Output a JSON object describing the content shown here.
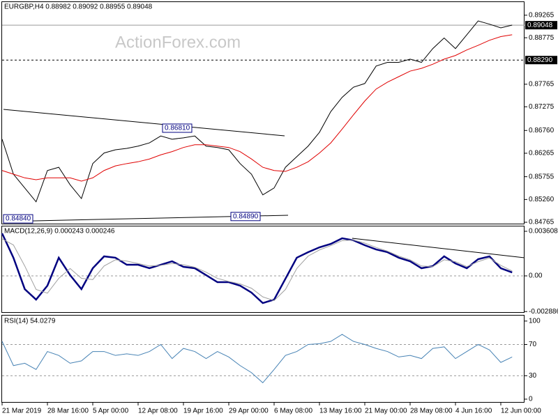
{
  "chart_data": [
    {
      "type": "line",
      "title": "EURGBP,H4  0.88982 0.89092 0.88955 0.89048",
      "watermark": "ActionForex.com",
      "ylim": [
        0.8472,
        0.8955
      ],
      "yticks": [
        0.89265,
        0.88775,
        0.87765,
        0.87275,
        {
          "value": 0.8676,
          "label": "0.86760"
        },
        0.86265,
        0.85755,
        {
          "value": 0.8526,
          "label": "0.85260"
        },
        0.84765
      ],
      "series": [
        {
          "color": "#000000",
          "values": [
            0.8657,
            0.8581,
            0.8551,
            0.8521,
            0.8589,
            0.8596,
            0.8558,
            0.8528,
            0.8604,
            0.8627,
            0.8634,
            0.8637,
            0.8642,
            0.8649,
            0.8664,
            0.8657,
            0.866,
            0.8664,
            0.8642,
            0.8639,
            0.8634,
            0.8604,
            0.8581,
            0.8536,
            0.8551,
            0.8596,
            0.8619,
            0.8642,
            0.8672,
            0.8717,
            0.8748,
            0.877,
            0.8778,
            0.8816,
            0.8824,
            0.8824,
            0.8831,
            0.8824,
            0.8854,
            0.8877,
            0.8854,
            0.8884,
            0.8914,
            0.8907,
            0.8899,
            0.8905
          ]
        },
        {
          "color": "#e00000",
          "values": [
            0.8589,
            0.8581,
            0.8573,
            0.8569,
            0.8573,
            0.8573,
            0.8573,
            0.8566,
            0.8573,
            0.8589,
            0.8599,
            0.8604,
            0.8608,
            0.8614,
            0.8623,
            0.863,
            0.8639,
            0.8645,
            0.8645,
            0.8642,
            0.8639,
            0.863,
            0.8614,
            0.8596,
            0.8589,
            0.8587,
            0.8596,
            0.8608,
            0.8627,
            0.8649,
            0.8679,
            0.871,
            0.874,
            0.8766,
            0.8781,
            0.8793,
            0.8805,
            0.8811,
            0.882,
            0.8831,
            0.8839,
            0.8851,
            0.8861,
            0.8872,
            0.888,
            0.8884
          ]
        }
      ],
      "price_lines": [
        {
          "value": 0.89048,
          "dashed": false
        },
        {
          "value": 0.8829,
          "label": "0.88290",
          "dashed": true
        }
      ],
      "annotations": [
        {
          "value": 0.8681,
          "label": "0.86810"
        },
        {
          "value": 0.8484,
          "label": "0.84840"
        },
        {
          "value": 0.8489,
          "label": "0.84890"
        }
      ]
    },
    {
      "type": "line",
      "title": "MACD(12,26,9) 0.000243 0.000246",
      "ylim": [
        -0.002988,
        0.004003
      ],
      "yticks": [
        0.003608,
        {
          "value": 0,
          "label": "0.00"
        },
        -0.002886
      ],
      "levels": [
        0
      ],
      "series": [
        {
          "color": "#000080",
          "width": 2.5,
          "values": [
            0.00344,
            0.00147,
            -0.00107,
            -0.00192,
            -0.00079,
            0.00147,
            6e-05,
            -0.00107,
            0.00062,
            0.00158,
            0.00147,
            0.0009,
            0.0009,
            0.00062,
            0.0009,
            0.00118,
            0.00073,
            0.00062,
            6e-05,
            -0.00051,
            -0.00051,
            -0.00079,
            -0.00135,
            -0.0022,
            -0.00192,
            -0.00023,
            0.00147,
            0.00192,
            0.00231,
            0.00259,
            0.00304,
            0.00288,
            0.00248,
            0.00214,
            0.00192,
            0.00147,
            0.00118,
            0.00062,
            0.00079,
            0.00158,
            0.00101,
            0.00062,
            0.00135,
            0.00158,
            0.00062,
            0.00028
          ]
        },
        {
          "color": "#a0a0a0",
          "width": 1,
          "values": [
            0.003,
            0.0025,
            0.0008,
            -0.0011,
            -0.0014,
            -0.0002,
            0.0006,
            -0.0002,
            -0.0003,
            0.0008,
            0.0013,
            0.0012,
            0.001,
            0.0008,
            0.00085,
            0.001,
            0.0009,
            0.0007,
            0.0003,
            -0.0002,
            -0.00045,
            -0.00065,
            -0.001,
            -0.0017,
            -0.002,
            -0.0011,
            0.0006,
            0.0016,
            0.0021,
            0.00245,
            0.00285,
            0.0029,
            0.00265,
            0.0023,
            0.002,
            0.0016,
            0.0013,
            0.0008,
            0.00075,
            0.0013,
            0.00115,
            0.00075,
            0.00115,
            0.00145,
            0.00085,
            0.0004
          ]
        }
      ]
    },
    {
      "type": "line",
      "title": "RSI(14) 54.0279",
      "ylim": [
        -4.5,
        107
      ],
      "yticks": [
        100,
        70,
        30,
        0
      ],
      "levels": [
        70,
        30
      ],
      "categories": [
        "21 Mar 2019",
        null,
        null,
        null,
        "28 Mar 16:00",
        null,
        null,
        null,
        "5 Apr 00:00",
        null,
        null,
        null,
        "12 Apr 08:00",
        null,
        null,
        null,
        "19 Apr 16:00",
        null,
        null,
        null,
        "29 Apr 00:00",
        null,
        null,
        null,
        "6 May 08:00",
        null,
        null,
        null,
        "13 May 16:00",
        null,
        null,
        null,
        "21 May 00:00",
        null,
        null,
        null,
        "28 May 08:00",
        null,
        null,
        null,
        "4 Jun 16:00",
        null,
        null,
        null,
        "12 Jun 00:00",
        null
      ],
      "series": [
        {
          "color": "#4682b4",
          "width": 1,
          "values": [
            74,
            43,
            46,
            38,
            61,
            56,
            46,
            49,
            61,
            61,
            56,
            58,
            56,
            61,
            70,
            52,
            65,
            61,
            52,
            61,
            54,
            43,
            34,
            21,
            38,
            56,
            61,
            70,
            71,
            74,
            83,
            74,
            70,
            65,
            61,
            54,
            56,
            52,
            65,
            67,
            52,
            61,
            70,
            63,
            47,
            54
          ]
        }
      ]
    }
  ]
}
